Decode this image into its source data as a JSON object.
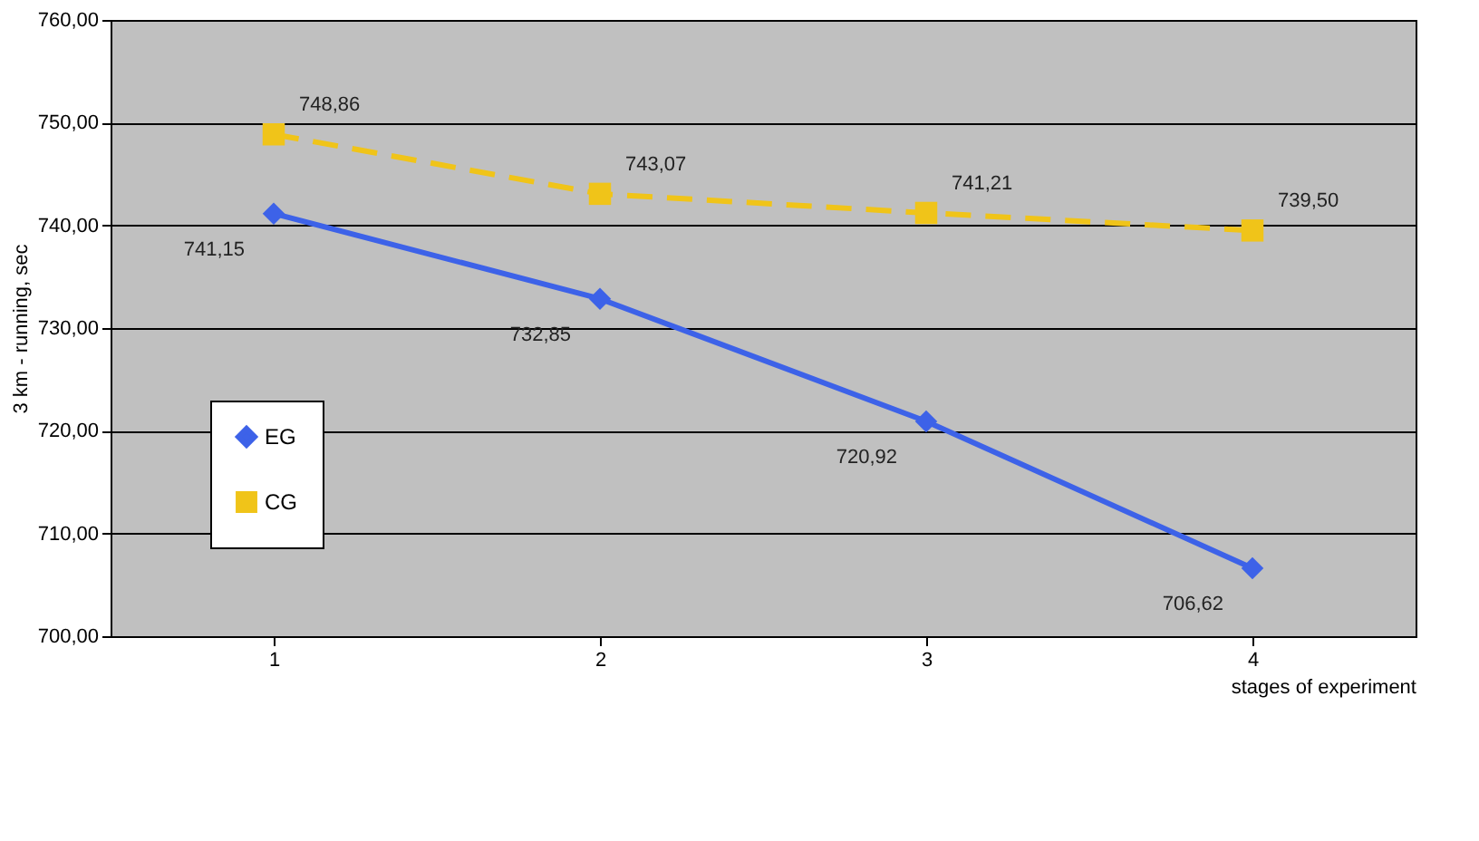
{
  "chart_data": {
    "type": "line",
    "xlabel": "stages of experiment",
    "ylabel": "3 km - running, sec",
    "categories": [
      "1",
      "2",
      "3",
      "4"
    ],
    "series": [
      {
        "name": "EG",
        "color": "#3d62e8",
        "marker": "diamond",
        "line_style": "solid",
        "values": [
          741.15,
          732.85,
          720.92,
          706.62
        ],
        "value_labels": [
          "741,15",
          "732,85",
          "720,92",
          "706,62"
        ]
      },
      {
        "name": "CG",
        "color": "#f0c419",
        "marker": "square",
        "line_style": "dashed",
        "values": [
          748.86,
          743.07,
          741.21,
          739.5
        ],
        "value_labels": [
          "748,86",
          "743,07",
          "741,21",
          "739,50"
        ]
      }
    ],
    "ylim": [
      700,
      760
    ],
    "yticks": [
      {
        "value": 700,
        "label": "700,00"
      },
      {
        "value": 710,
        "label": "710,00"
      },
      {
        "value": 720,
        "label": "720,00"
      },
      {
        "value": 730,
        "label": "730,00"
      },
      {
        "value": 740,
        "label": "740,00"
      },
      {
        "value": 750,
        "label": "750,00"
      },
      {
        "value": 760,
        "label": "760,00"
      }
    ],
    "grid": "y",
    "legend": "bottom left"
  }
}
